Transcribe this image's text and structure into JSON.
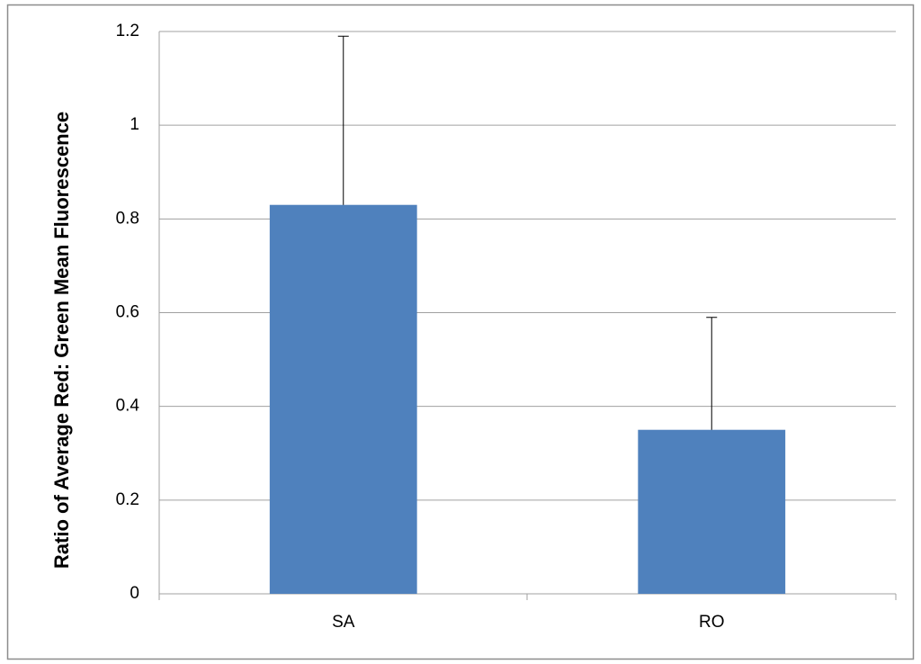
{
  "chart_data": {
    "type": "bar",
    "y_label": "Ratio of Average Red: Green Mean Fluorescence",
    "categories": [
      "SA",
      "RO"
    ],
    "values": [
      0.83,
      0.35
    ],
    "errors": [
      0.36,
      0.24
    ],
    "color": "#4f81bd",
    "ylim": [
      0,
      1.2
    ],
    "yticks": [
      0,
      0.2,
      0.4,
      0.6,
      0.8,
      1,
      1.2
    ],
    "grid": true
  }
}
